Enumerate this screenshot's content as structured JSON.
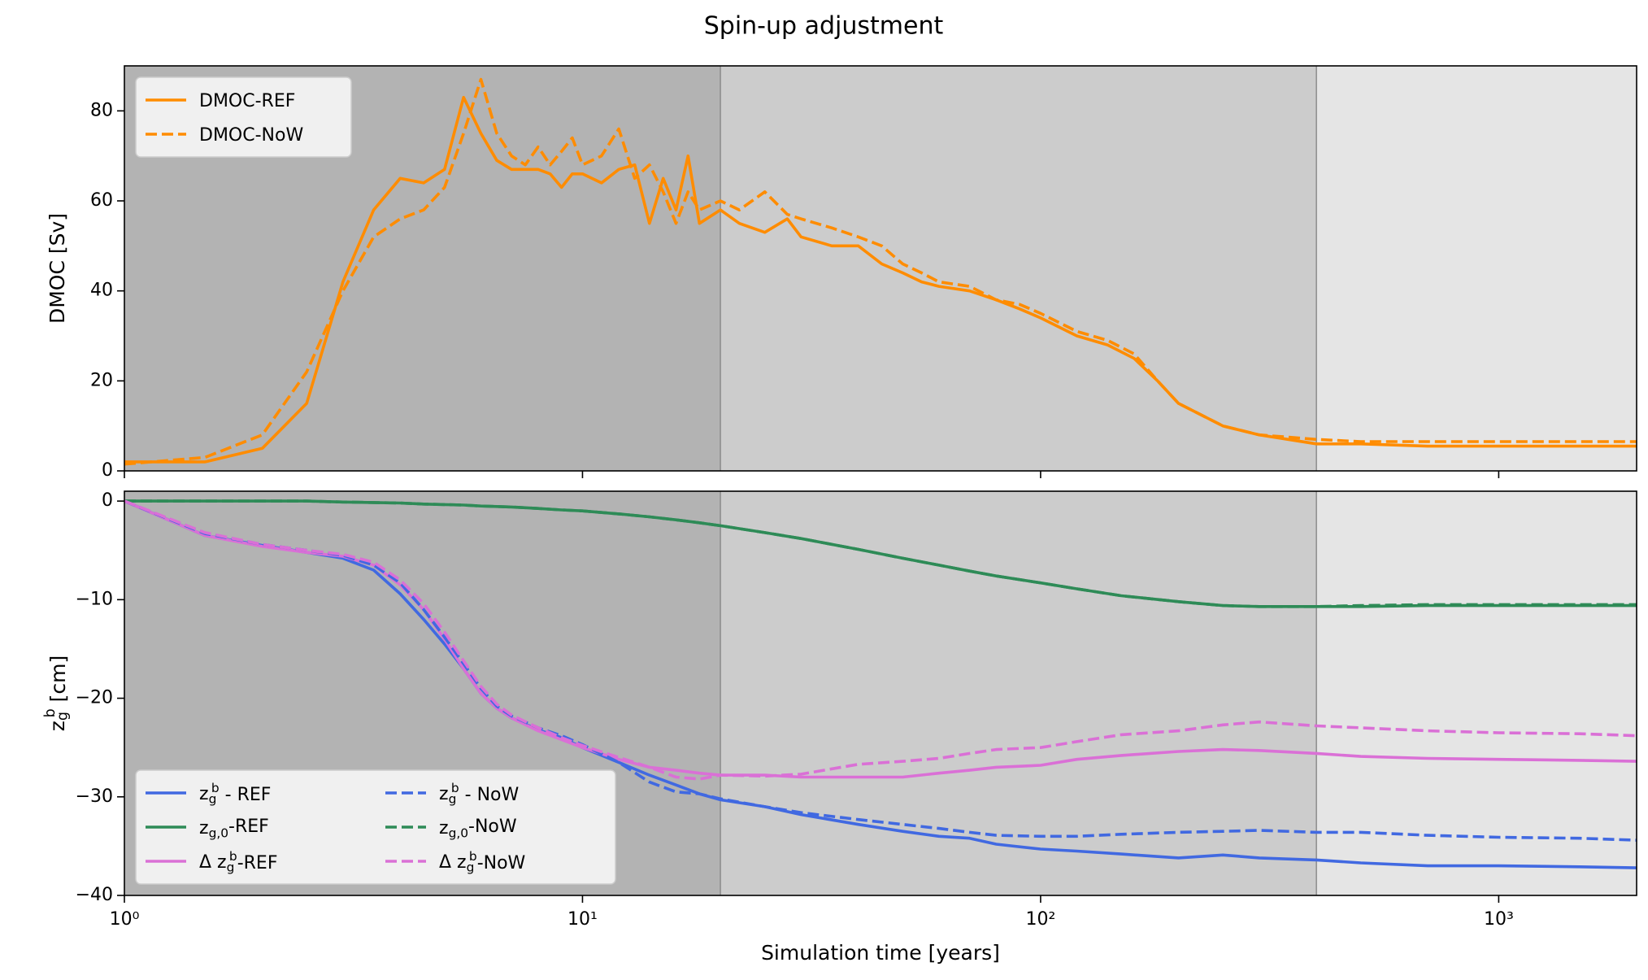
{
  "title": "Spin-up adjustment",
  "chart_data": [
    {
      "type": "line",
      "ylabel": "DMOC [Sv]",
      "xscale": "log",
      "xlim": [
        1,
        2000
      ],
      "ylim": [
        0,
        90
      ],
      "xticks": [
        1,
        10,
        100,
        1000
      ],
      "yticks": [
        0,
        20,
        40,
        60,
        80
      ],
      "legend": "upper left",
      "ncol": 1,
      "shaded_regions": [
        {
          "xlim": [
            1,
            20
          ],
          "color": "#b3b3b3"
        },
        {
          "xlim": [
            20,
            400
          ],
          "color": "#cccccc"
        },
        {
          "xlim": [
            400,
            2000
          ],
          "color": "#e5e5e5"
        }
      ],
      "x": [
        1,
        1.5,
        2,
        2.5,
        3,
        3.5,
        4,
        4.5,
        5,
        5.5,
        6,
        6.5,
        7,
        7.5,
        8,
        8.5,
        9,
        9.5,
        10,
        11,
        12,
        13,
        14,
        15,
        16,
        17,
        18,
        20,
        22,
        25,
        28,
        30,
        35,
        40,
        45,
        50,
        55,
        60,
        70,
        80,
        90,
        100,
        120,
        140,
        160,
        180,
        200,
        250,
        300,
        400,
        500,
        700,
        1000,
        1500,
        2000
      ],
      "series": [
        {
          "name": "DMOC-REF",
          "color": "#ff8c00",
          "linestyle": "solid",
          "values": [
            2,
            2,
            5,
            15,
            42,
            58,
            65,
            64,
            67,
            83,
            75,
            69,
            67,
            67,
            67,
            66,
            63,
            66,
            66,
            64,
            67,
            68,
            55,
            65,
            58,
            70,
            55,
            58,
            55,
            53,
            56,
            52,
            50,
            50,
            46,
            44,
            42,
            41,
            40,
            38,
            36,
            34,
            30,
            28,
            25,
            20,
            15,
            10,
            8,
            6,
            6,
            5.5,
            5.5,
            5.5,
            5.5
          ]
        },
        {
          "name": "DMOC-NoW",
          "color": "#ff8c00",
          "linestyle": "dashed",
          "values": [
            1.5,
            3,
            8,
            22,
            40,
            52,
            56,
            58,
            63,
            75,
            87,
            75,
            70,
            68,
            72,
            68,
            71,
            74,
            68,
            70,
            76,
            65,
            68,
            62,
            55,
            62,
            58,
            60,
            58,
            62,
            57,
            56,
            54,
            52,
            50,
            46,
            44,
            42,
            41,
            38,
            37,
            35,
            31,
            29,
            26,
            20,
            15,
            10,
            8,
            7,
            6.5,
            6.5,
            6.5,
            6.5,
            6.5
          ]
        }
      ]
    },
    {
      "type": "line",
      "ylabel": "z_g^b [cm]",
      "xlabel": "Simulation time [years]",
      "xscale": "log",
      "xlim": [
        1,
        2000
      ],
      "ylim": [
        -40,
        1
      ],
      "xticks": [
        {
          "value": 1,
          "label": "10⁰"
        },
        {
          "value": 10,
          "label": "10¹"
        },
        {
          "value": 100,
          "label": "10²"
        },
        {
          "value": 1000,
          "label": "10³"
        }
      ],
      "yticks": [
        {
          "value": 0,
          "label": "0"
        },
        {
          "value": -10,
          "label": "−10"
        },
        {
          "value": -20,
          "label": "−20"
        },
        {
          "value": -30,
          "label": "−30"
        },
        {
          "value": -40,
          "label": "−40"
        }
      ],
      "legend": "lower left",
      "ncol": 2,
      "shaded_regions": [
        {
          "xlim": [
            1,
            20
          ],
          "color": "#b3b3b3"
        },
        {
          "xlim": [
            20,
            400
          ],
          "color": "#cccccc"
        },
        {
          "xlim": [
            400,
            2000
          ],
          "color": "#e5e5e5"
        }
      ],
      "x": [
        1,
        1.5,
        2,
        2.5,
        3,
        3.5,
        4,
        4.5,
        5,
        5.5,
        6,
        6.5,
        7,
        8,
        9,
        10,
        12,
        14,
        16,
        18,
        20,
        25,
        30,
        40,
        50,
        60,
        70,
        80,
        100,
        120,
        150,
        200,
        250,
        300,
        400,
        500,
        700,
        1000,
        1500,
        2000
      ],
      "series": [
        {
          "name": "z_g^b - REF",
          "color": "#4169e1",
          "linestyle": "solid",
          "values": [
            0,
            -3.5,
            -4.5,
            -5.2,
            -5.8,
            -7,
            -9.4,
            -12,
            -14.5,
            -17,
            -19.5,
            -21,
            -22,
            -23.2,
            -24,
            -25,
            -26.5,
            -27.8,
            -28.8,
            -29.7,
            -30.3,
            -31,
            -31.8,
            -32.8,
            -33.5,
            -34,
            -34.2,
            -34.8,
            -35.3,
            -35.5,
            -35.8,
            -36.2,
            -35.9,
            -36.2,
            -36.4,
            -36.7,
            -37,
            -37,
            -37.1,
            -37.2
          ]
        },
        {
          "name": "z_{g,0}-REF",
          "color": "#2e8b57",
          "linestyle": "solid",
          "values": [
            0,
            0,
            0,
            0,
            -0.1,
            -0.15,
            -0.2,
            -0.3,
            -0.35,
            -0.4,
            -0.5,
            -0.55,
            -0.6,
            -0.75,
            -0.9,
            -1,
            -1.3,
            -1.6,
            -1.9,
            -2.2,
            -2.5,
            -3.2,
            -3.8,
            -4.9,
            -5.8,
            -6.5,
            -7.1,
            -7.6,
            -8.3,
            -8.9,
            -9.6,
            -10.2,
            -10.6,
            -10.7,
            -10.7,
            -10.7,
            -10.6,
            -10.6,
            -10.6,
            -10.6
          ]
        },
        {
          "name": "Δ z_g^b-REF",
          "color": "#da70d6",
          "linestyle": "solid",
          "values": [
            0,
            -3.5,
            -4.6,
            -5.2,
            -5.6,
            -6.5,
            -8.5,
            -11,
            -14,
            -17,
            -19.5,
            -21,
            -22,
            -23.3,
            -24.2,
            -25,
            -26.2,
            -27,
            -27.3,
            -27.6,
            -27.8,
            -27.8,
            -28,
            -28,
            -28,
            -27.6,
            -27.3,
            -27,
            -26.8,
            -26.2,
            -25.8,
            -25.4,
            -25.2,
            -25.3,
            -25.6,
            -25.9,
            -26.1,
            -26.2,
            -26.3,
            -26.4
          ]
        },
        {
          "name": "z_g^b - NoW",
          "color": "#4169e1",
          "linestyle": "dashed",
          "values": [
            0,
            -3.3,
            -4.4,
            -5,
            -5.5,
            -6.5,
            -8.3,
            -11,
            -13.8,
            -16.5,
            -19,
            -20.8,
            -21.8,
            -23,
            -23.8,
            -24.7,
            -26.5,
            -28.5,
            -29.5,
            -29.7,
            -30.2,
            -31,
            -31.6,
            -32.3,
            -32.8,
            -33.2,
            -33.6,
            -33.9,
            -34,
            -34,
            -33.8,
            -33.6,
            -33.5,
            -33.4,
            -33.6,
            -33.6,
            -33.9,
            -34.1,
            -34.2,
            -34.4
          ]
        },
        {
          "name": "z_{g,0}-NoW",
          "color": "#2e8b57",
          "linestyle": "dashed",
          "values": [
            0,
            0,
            0,
            0,
            -0.1,
            -0.15,
            -0.2,
            -0.3,
            -0.35,
            -0.4,
            -0.5,
            -0.55,
            -0.6,
            -0.75,
            -0.9,
            -1,
            -1.3,
            -1.6,
            -1.9,
            -2.2,
            -2.5,
            -3.2,
            -3.8,
            -4.9,
            -5.8,
            -6.5,
            -7.1,
            -7.6,
            -8.3,
            -8.9,
            -9.6,
            -10.2,
            -10.6,
            -10.7,
            -10.7,
            -10.6,
            -10.5,
            -10.5,
            -10.5,
            -10.5
          ]
        },
        {
          "name": "Δ z_g^b-NoW",
          "color": "#da70d6",
          "linestyle": "dashed",
          "values": [
            0,
            -3.2,
            -4.4,
            -5,
            -5.4,
            -6.2,
            -8,
            -10.4,
            -13.3,
            -16.2,
            -18.8,
            -20.6,
            -21.7,
            -23,
            -24,
            -24.8,
            -26,
            -27,
            -28,
            -28.2,
            -27.8,
            -27.9,
            -27.7,
            -26.7,
            -26.4,
            -26.1,
            -25.6,
            -25.2,
            -25,
            -24.4,
            -23.7,
            -23.3,
            -22.7,
            -22.4,
            -22.8,
            -23,
            -23.3,
            -23.5,
            -23.6,
            -23.8
          ]
        }
      ]
    }
  ]
}
